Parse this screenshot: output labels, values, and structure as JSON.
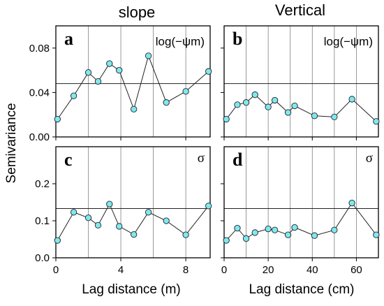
{
  "figure": {
    "col_titles": [
      "slope",
      "Vertical"
    ],
    "ylabel": "Semivariance",
    "xlabels": [
      "Lag distance (m)",
      "Lag distance (cm)"
    ],
    "colors": {
      "marker_fill": "#7fe8f0",
      "marker_stroke": "#222222",
      "line": "#222222",
      "grid": "#808080",
      "sill": "#222222"
    }
  },
  "chart_data": [
    {
      "type": "line",
      "panel": "a",
      "label": "log(−ψm)",
      "xlim": [
        0,
        9.5
      ],
      "ylim": [
        0,
        0.1
      ],
      "xticks": [
        0,
        4,
        8
      ],
      "xtick_labels": [
        "0",
        "4",
        "8"
      ],
      "yticks": [
        0,
        0.04,
        0.08
      ],
      "ytick_labels": [
        "0.00",
        "0.04",
        "0.08"
      ],
      "vgrid": [
        2,
        4,
        6,
        8
      ],
      "sill": 0.048,
      "x": [
        0.1,
        1.1,
        2.0,
        2.6,
        3.3,
        3.9,
        4.8,
        5.7,
        6.8,
        8.0,
        9.4
      ],
      "y": [
        0.016,
        0.037,
        0.058,
        0.05,
        0.066,
        0.06,
        0.025,
        0.073,
        0.031,
        0.041,
        0.059
      ]
    },
    {
      "type": "line",
      "panel": "b",
      "label": "log(−ψm)",
      "xlim": [
        0,
        70
      ],
      "ylim": [
        0,
        0.1
      ],
      "xticks": [
        0,
        20,
        40,
        60
      ],
      "xtick_labels": [
        "0",
        "20",
        "40",
        "60"
      ],
      "yticks": [
        0,
        0.04,
        0.08
      ],
      "ytick_labels": [
        "",
        "",
        ""
      ],
      "vgrid": [
        10,
        20,
        30,
        40,
        50,
        60
      ],
      "sill": 0.048,
      "x": [
        1,
        6,
        10,
        14,
        20,
        23,
        29,
        32,
        41,
        50,
        58,
        69
      ],
      "y": [
        0.016,
        0.029,
        0.031,
        0.038,
        0.027,
        0.033,
        0.022,
        0.028,
        0.019,
        0.018,
        0.034,
        0.014
      ]
    },
    {
      "type": "line",
      "panel": "c",
      "label": "σ",
      "xlim": [
        0,
        9.5
      ],
      "ylim": [
        0,
        0.3
      ],
      "xticks": [
        0,
        4,
        8
      ],
      "xtick_labels": [
        "0",
        "4",
        "8"
      ],
      "yticks": [
        0,
        0.1,
        0.2
      ],
      "ytick_labels": [
        "0.0",
        "0.1",
        "0.2"
      ],
      "vgrid": [
        2,
        4,
        6,
        8
      ],
      "sill": 0.133,
      "x": [
        0.1,
        1.1,
        2.0,
        2.6,
        3.3,
        3.9,
        4.8,
        5.7,
        6.8,
        8.0,
        9.4
      ],
      "y": [
        0.047,
        0.123,
        0.108,
        0.088,
        0.145,
        0.085,
        0.063,
        0.123,
        0.1,
        0.062,
        0.14
      ]
    },
    {
      "type": "line",
      "panel": "d",
      "label": "σ",
      "xlim": [
        0,
        70
      ],
      "ylim": [
        0,
        0.3
      ],
      "xticks": [
        0,
        20,
        40,
        60
      ],
      "xtick_labels": [
        "0",
        "20",
        "40",
        "60"
      ],
      "yticks": [
        0,
        0.1,
        0.2
      ],
      "ytick_labels": [
        "",
        "",
        ""
      ],
      "vgrid": [
        10,
        20,
        30,
        40,
        50,
        60
      ],
      "sill": 0.133,
      "x": [
        1,
        6,
        10,
        14,
        20,
        23,
        29,
        32,
        41,
        50,
        58,
        69
      ],
      "y": [
        0.047,
        0.08,
        0.052,
        0.068,
        0.078,
        0.075,
        0.062,
        0.082,
        0.06,
        0.075,
        0.148,
        0.062
      ]
    }
  ]
}
